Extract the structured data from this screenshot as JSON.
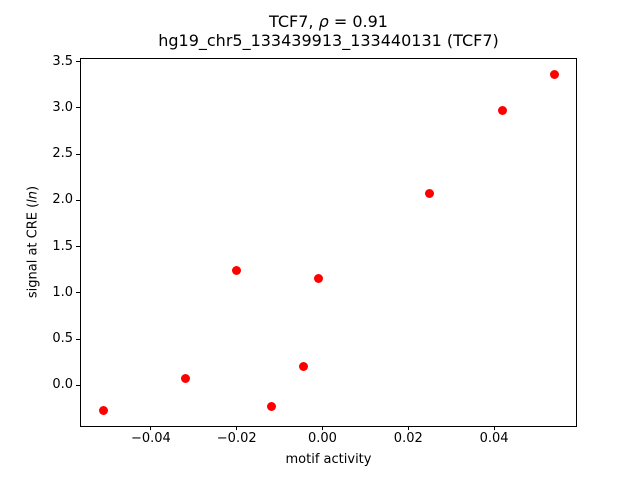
{
  "figure": {
    "background": "#ffffff",
    "title": {
      "prefix": "TCF7, ",
      "rho": "ρ",
      "suffix": " = 0.91"
    },
    "subtitle": "hg19_chr5_133439913_133440131 (TCF7)",
    "ylabel_parts": {
      "prefix": "signal at CRE (",
      "italic": "ln",
      "suffix": ")"
    }
  },
  "chart_data": {
    "type": "scatter",
    "title": "TCF7, ρ = 0.91",
    "subtitle": "hg19_chr5_133439913_133440131 (TCF7)",
    "xlabel": "motif activity",
    "ylabel": "signal at CRE (ln)",
    "marker_color": "#ff0000",
    "marker_size_px": 9,
    "grid": false,
    "legend": null,
    "xlim": [
      -0.0563,
      0.0591
    ],
    "ylim": [
      -0.44,
      3.53
    ],
    "xticks": [
      {
        "value": -0.04,
        "label": "−0.04"
      },
      {
        "value": -0.02,
        "label": "−0.02"
      },
      {
        "value": 0.0,
        "label": "0.00"
      },
      {
        "value": 0.02,
        "label": "0.02"
      },
      {
        "value": 0.04,
        "label": "0.04"
      }
    ],
    "yticks": [
      {
        "value": 0.0,
        "label": "0.0"
      },
      {
        "value": 0.5,
        "label": "0.5"
      },
      {
        "value": 1.0,
        "label": "1.0"
      },
      {
        "value": 1.5,
        "label": "1.5"
      },
      {
        "value": 2.0,
        "label": "2.0"
      },
      {
        "value": 2.5,
        "label": "2.5"
      },
      {
        "value": 3.0,
        "label": "3.0"
      },
      {
        "value": 3.5,
        "label": "3.5"
      }
    ],
    "points": [
      {
        "x": -0.051,
        "y": -0.27
      },
      {
        "x": -0.032,
        "y": 0.07
      },
      {
        "x": -0.02,
        "y": 1.24
      },
      {
        "x": -0.012,
        "y": -0.23
      },
      {
        "x": -0.0045,
        "y": 0.2
      },
      {
        "x": -0.001,
        "y": 1.16
      },
      {
        "x": 0.025,
        "y": 2.07
      },
      {
        "x": 0.042,
        "y": 2.97
      },
      {
        "x": 0.054,
        "y": 3.36
      }
    ]
  }
}
